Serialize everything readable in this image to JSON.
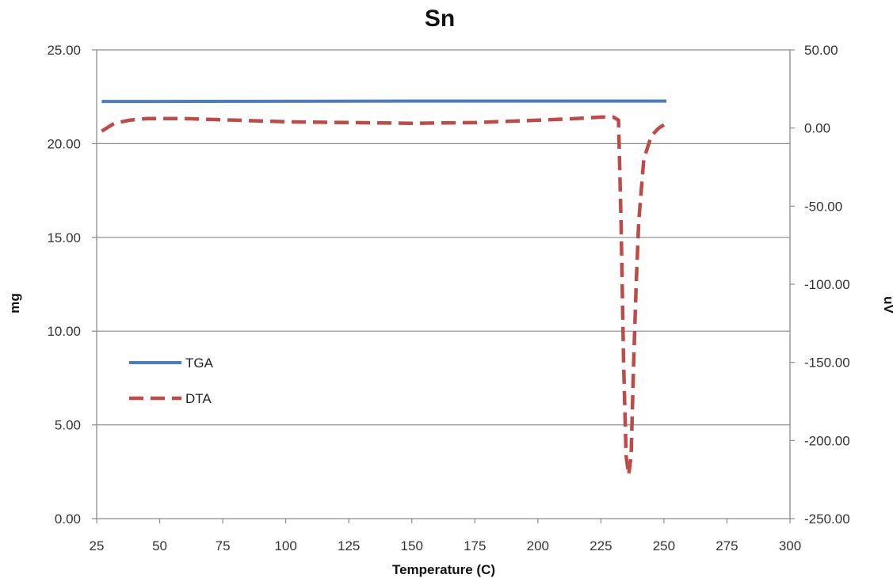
{
  "chart_data": {
    "type": "line",
    "title": "Sn",
    "xlabel": "Temperature (C)",
    "ylabel_left": "mg",
    "ylabel_right": "uV",
    "xlim": [
      25,
      300
    ],
    "ylim_left": [
      0,
      25
    ],
    "ylim_right": [
      -250,
      50
    ],
    "x_ticks": [
      "25",
      "50",
      "75",
      "100",
      "125",
      "150",
      "175",
      "200",
      "225",
      "250",
      "275",
      "300"
    ],
    "y_left_ticks": [
      "0.00",
      "5.00",
      "10.00",
      "15.00",
      "20.00",
      "25.00"
    ],
    "y_right_ticks": [
      "-250.00",
      "-200.00",
      "-150.00",
      "-100.00",
      "-50.00",
      "0.00",
      "50.00"
    ],
    "grid": "horizontal",
    "legend_position": "left-lower",
    "colors": {
      "TGA": "#4A7EBB",
      "DTA": "#BE4B48",
      "grid": "#8C8C8C",
      "axis": "#8C8C8C"
    },
    "series": [
      {
        "name": "TGA",
        "axis": "left",
        "style": "solid",
        "x": [
          27,
          50,
          100,
          150,
          200,
          251
        ],
        "y": [
          22.25,
          22.25,
          22.26,
          22.27,
          22.27,
          22.27
        ]
      },
      {
        "name": "DTA",
        "axis": "right",
        "style": "dashed",
        "x": [
          27,
          32,
          38,
          45,
          60,
          80,
          100,
          125,
          150,
          175,
          200,
          215,
          225,
          230,
          232,
          233,
          234,
          235,
          236,
          237,
          238,
          239,
          240,
          242,
          245,
          248,
          250
        ],
        "y": [
          -2,
          3,
          5,
          6,
          6,
          5,
          4,
          3.5,
          3,
          3.5,
          5,
          6,
          7,
          7,
          5,
          -60,
          -150,
          -210,
          -222,
          -210,
          -150,
          -100,
          -60,
          -20,
          -5,
          0,
          2
        ]
      }
    ]
  }
}
